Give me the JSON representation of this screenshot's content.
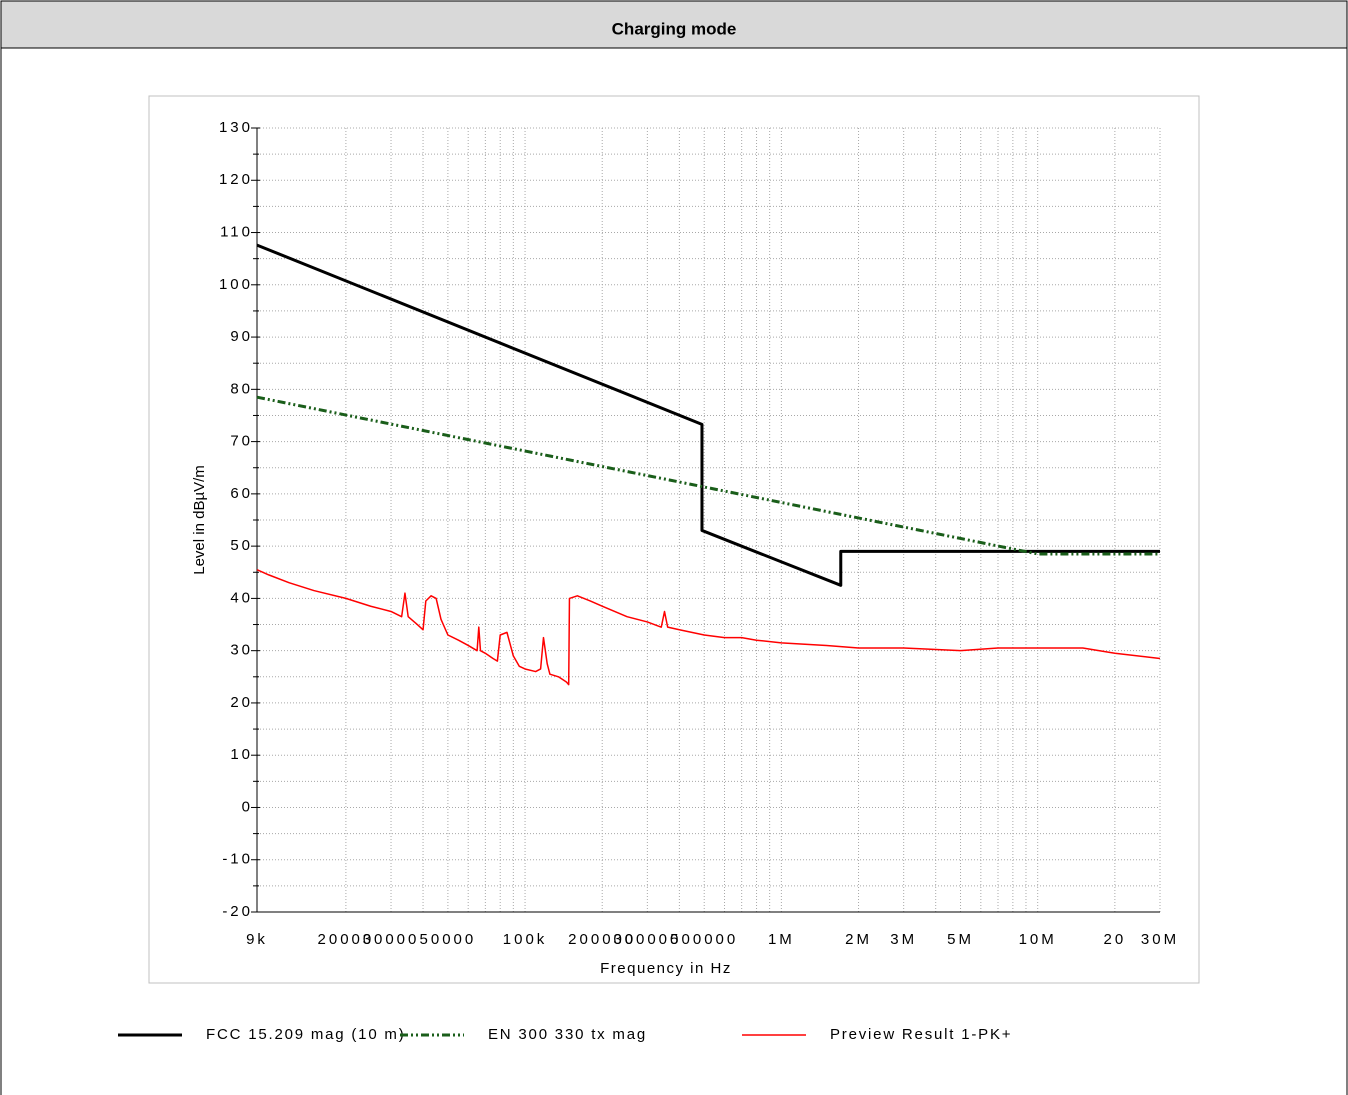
{
  "chart_data": {
    "type": "line",
    "title": "Charging mode",
    "x_label": "Frequency in Hz",
    "y_label": "Level in dBµV/m",
    "xscale": "log",
    "grid": true,
    "legend": "bottom",
    "xlim": [
      9000,
      30000000
    ],
    "ylim": [
      -20,
      130
    ],
    "xticks": [
      {
        "value": 9000,
        "label": "9k"
      },
      20000,
      30000,
      50000,
      {
        "value": 100000,
        "label": "100k"
      },
      200000,
      300000,
      500000,
      {
        "value": 1000000,
        "label": "1M"
      },
      {
        "value": 2000000,
        "label": "2M"
      },
      {
        "value": 3000000,
        "label": "3M"
      },
      {
        "value": 5000000,
        "label": "5M"
      },
      {
        "value": 10000000,
        "label": "10M"
      },
      {
        "value": 20000000,
        "label": "20"
      },
      {
        "value": 30000000,
        "label": "30M"
      }
    ],
    "xticks_unlabeled": [
      40000,
      60000,
      70000,
      80000,
      90000,
      400000,
      600000,
      700000,
      800000,
      900000,
      4000000,
      6000000,
      7000000,
      8000000,
      9000000
    ],
    "yticks": [
      -20,
      -10,
      0,
      10,
      20,
      30,
      40,
      50,
      60,
      70,
      80,
      90,
      100,
      110,
      120,
      130
    ],
    "yticks_unlabeled": [
      -15,
      -5,
      5,
      15,
      25,
      35,
      45,
      55,
      65,
      75,
      85,
      95,
      105,
      115,
      125
    ],
    "series": [
      {
        "name": "FCC 15.209 mag (10 m)",
        "color": "#000000",
        "dash": "solid",
        "x": [
          9000,
          490000,
          490000,
          1705000,
          1705000,
          30000000
        ],
        "values": [
          107.6,
          73.3,
          53.0,
          42.5,
          49.0,
          49.0
        ]
      },
      {
        "name": "EN 300 330 tx mag",
        "color": "#1a5e1a",
        "dash": "dashdotdot",
        "x": [
          9000,
          10000000,
          30000000
        ],
        "values": [
          78.5,
          48.5,
          48.5
        ]
      },
      {
        "name": "Preview Result 1-PK+",
        "color": "#ff0000",
        "dash": "solid",
        "x": [
          9000,
          10000,
          12000,
          15000,
          20000,
          25000,
          30000,
          33000,
          34000,
          35000,
          38000,
          40000,
          41000,
          43000,
          45000,
          47000,
          50000,
          55000,
          60000,
          65000,
          66000,
          67000,
          70000,
          75000,
          78000,
          80000,
          85000,
          90000,
          95000,
          100000,
          110000,
          115000,
          118000,
          122000,
          125000,
          135000,
          145000,
          148000,
          149000,
          160000,
          180000,
          200000,
          250000,
          300000,
          340000,
          350000,
          360000,
          400000,
          500000,
          600000,
          700000,
          800000,
          1000000,
          1500000,
          2000000,
          3000000,
          5000000,
          7000000,
          10000000,
          15000000,
          20000000,
          30000000
        ],
        "values": [
          45.5,
          44.5,
          43,
          41.5,
          40,
          38.5,
          37.5,
          36.5,
          41,
          36.5,
          35,
          34,
          39.5,
          40.5,
          40,
          36,
          33,
          32,
          31,
          30,
          34.5,
          30,
          29.5,
          28.5,
          28,
          33,
          33.5,
          29,
          27,
          26.5,
          26,
          26.5,
          32.5,
          27.5,
          25.5,
          25,
          24,
          23.5,
          40,
          40.5,
          39.5,
          38.5,
          36.5,
          35.5,
          34.5,
          37.5,
          34.5,
          34,
          33,
          32.5,
          32.5,
          32,
          31.5,
          31,
          30.5,
          30.5,
          30,
          30.5,
          30.5,
          30.5,
          29.5,
          28.5
        ]
      }
    ]
  }
}
